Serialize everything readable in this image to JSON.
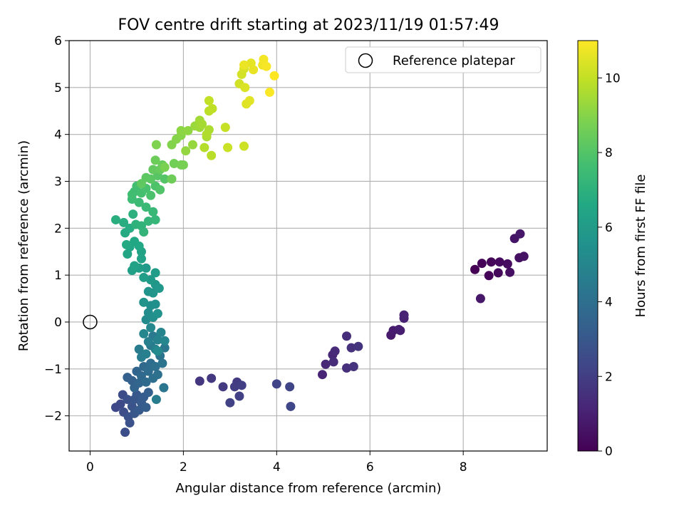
{
  "chart_data": {
    "type": "scatter",
    "title": "FOV centre drift starting at 2023/11/19 01:57:49",
    "xlabel": "Angular distance from reference (arcmin)",
    "ylabel": "Rotation from reference (arcmin)",
    "xlim": [
      -0.45,
      9.8
    ],
    "ylim": [
      -2.75,
      6.0
    ],
    "x_ticks": [
      0,
      2,
      4,
      6,
      8
    ],
    "y_ticks": [
      -2,
      -1,
      0,
      1,
      2,
      3,
      4,
      5,
      6
    ],
    "grid": true,
    "legend": {
      "position": "top-right",
      "entries": [
        "Reference platepar"
      ]
    },
    "colorbar": {
      "label": "Hours from first FF file",
      "range": [
        0,
        11
      ],
      "ticks": [
        0,
        2,
        4,
        6,
        8,
        10
      ],
      "colormap": "viridis"
    },
    "reference_point": {
      "x": 0,
      "y": 0
    },
    "series": [
      {
        "points": [
          [
            8.25,
            1.12
          ],
          [
            8.4,
            1.25
          ],
          [
            8.55,
            0.99
          ],
          [
            8.6,
            1.28
          ],
          [
            8.75,
            1.05
          ],
          [
            8.78,
            1.28
          ],
          [
            8.95,
            1.24
          ],
          [
            9.0,
            1.06
          ],
          [
            9.2,
            1.37
          ],
          [
            9.3,
            1.4
          ],
          [
            9.1,
            1.78
          ],
          [
            9.22,
            1.88
          ],
          [
            8.37,
            0.5
          ],
          [
            6.45,
            -0.28
          ],
          [
            6.5,
            -0.18
          ],
          [
            6.65,
            -0.18
          ],
          [
            6.62,
            -0.16
          ],
          [
            6.73,
            0.08
          ],
          [
            6.73,
            0.15
          ],
          [
            4.98,
            -1.12
          ],
          [
            5.05,
            -0.9
          ],
          [
            5.2,
            -0.7
          ],
          [
            5.25,
            -0.62
          ],
          [
            5.22,
            -0.85
          ],
          [
            5.5,
            -0.3
          ],
          [
            5.5,
            -0.98
          ],
          [
            5.6,
            -0.55
          ],
          [
            5.65,
            -0.95
          ],
          [
            5.75,
            -0.52
          ],
          [
            2.35,
            -1.26
          ],
          [
            2.6,
            -1.2
          ],
          [
            2.85,
            -1.38
          ],
          [
            3.15,
            -1.28
          ],
          [
            3.1,
            -1.38
          ],
          [
            3.25,
            -1.35
          ],
          [
            3.2,
            -1.58
          ],
          [
            3.0,
            -1.72
          ],
          [
            4.0,
            -1.32
          ],
          [
            4.28,
            -1.38
          ],
          [
            4.3,
            -1.8
          ],
          [
            0.55,
            -1.82
          ],
          [
            0.65,
            -1.75
          ],
          [
            0.7,
            -1.55
          ],
          [
            0.72,
            -1.92
          ],
          [
            0.75,
            -2.35
          ],
          [
            0.8,
            -1.65
          ],
          [
            0.82,
            -2.02
          ],
          [
            0.85,
            -2.15
          ],
          [
            0.9,
            -1.8
          ],
          [
            0.95,
            -1.65
          ],
          [
            0.95,
            -1.95
          ],
          [
            1.0,
            -1.55
          ],
          [
            1.05,
            -1.88
          ],
          [
            1.1,
            -1.72
          ],
          [
            1.15,
            -1.6
          ],
          [
            1.2,
            -1.82
          ],
          [
            1.25,
            -1.5
          ],
          [
            0.8,
            -1.18
          ],
          [
            0.9,
            -1.25
          ],
          [
            0.95,
            -1.4
          ],
          [
            1.0,
            -1.05
          ],
          [
            1.05,
            -1.3
          ],
          [
            1.1,
            -1.15
          ],
          [
            1.15,
            -0.95
          ],
          [
            1.2,
            -1.28
          ],
          [
            1.25,
            -1.05
          ],
          [
            1.3,
            -0.88
          ],
          [
            1.35,
            -1.2
          ],
          [
            1.4,
            -0.95
          ],
          [
            1.45,
            -1.12
          ],
          [
            1.5,
            -0.72
          ],
          [
            1.55,
            -0.88
          ],
          [
            1.58,
            -1.4
          ],
          [
            1.6,
            -0.55
          ],
          [
            1.3,
            -0.5
          ],
          [
            1.35,
            -0.3
          ],
          [
            1.42,
            -1.65
          ],
          [
            1.05,
            -0.58
          ],
          [
            1.1,
            -0.75
          ],
          [
            1.2,
            -0.68
          ],
          [
            1.25,
            -0.42
          ],
          [
            1.4,
            -0.58
          ],
          [
            1.45,
            -0.38
          ],
          [
            1.52,
            -0.22
          ],
          [
            1.6,
            -0.4
          ],
          [
            1.15,
            -0.25
          ],
          [
            1.3,
            -0.12
          ],
          [
            1.45,
            -0.62
          ],
          [
            1.2,
            0.05
          ],
          [
            1.25,
            0.2
          ],
          [
            1.3,
            0.35
          ],
          [
            1.35,
            0.1
          ],
          [
            1.4,
            0.38
          ],
          [
            1.45,
            0.18
          ],
          [
            1.15,
            0.42
          ],
          [
            1.25,
            0.65
          ],
          [
            1.35,
            0.62
          ],
          [
            1.4,
            0.8
          ],
          [
            1.48,
            0.72
          ],
          [
            1.3,
            0.9
          ],
          [
            1.2,
            1.15
          ],
          [
            1.4,
            1.05
          ],
          [
            1.15,
            0.95
          ],
          [
            1.05,
            1.15
          ],
          [
            0.9,
            1.1
          ],
          [
            0.95,
            1.2
          ],
          [
            1.1,
            1.35
          ],
          [
            1.1,
            1.5
          ],
          [
            0.8,
            1.45
          ],
          [
            0.85,
            1.6
          ],
          [
            0.95,
            1.72
          ],
          [
            1.05,
            1.62
          ],
          [
            0.78,
            1.65
          ],
          [
            0.75,
            1.9
          ],
          [
            0.85,
            2.0
          ],
          [
            0.72,
            2.12
          ],
          [
            0.55,
            2.18
          ],
          [
            0.92,
            2.3
          ],
          [
            0.98,
            2.08
          ],
          [
            1.1,
            2.05
          ],
          [
            1.15,
            1.92
          ],
          [
            1.25,
            2.15
          ],
          [
            1.4,
            2.18
          ],
          [
            1.35,
            2.35
          ],
          [
            1.2,
            2.45
          ],
          [
            1.05,
            2.55
          ],
          [
            0.9,
            2.62
          ],
          [
            0.95,
            2.78
          ],
          [
            0.9,
            2.72
          ],
          [
            1.0,
            2.9
          ],
          [
            1.1,
            2.75
          ],
          [
            1.2,
            2.85
          ],
          [
            1.3,
            2.7
          ],
          [
            1.4,
            2.9
          ],
          [
            1.5,
            2.82
          ],
          [
            1.6,
            3.05
          ],
          [
            1.45,
            3.12
          ],
          [
            1.3,
            3.05
          ],
          [
            1.2,
            3.08
          ],
          [
            1.1,
            2.95
          ],
          [
            1.35,
            3.25
          ],
          [
            1.5,
            3.25
          ],
          [
            1.55,
            3.35
          ],
          [
            1.4,
            3.45
          ],
          [
            1.75,
            3.05
          ],
          [
            1.8,
            3.38
          ],
          [
            1.95,
            3.35
          ],
          [
            2.0,
            3.35
          ],
          [
            1.6,
            3.3
          ],
          [
            1.42,
            3.78
          ],
          [
            1.75,
            3.78
          ],
          [
            1.85,
            3.9
          ],
          [
            1.95,
            3.98
          ],
          [
            1.95,
            4.08
          ],
          [
            2.1,
            4.08
          ],
          [
            2.05,
            3.65
          ],
          [
            2.2,
            3.78
          ],
          [
            2.25,
            4.18
          ],
          [
            2.35,
            4.15
          ],
          [
            2.35,
            4.3
          ],
          [
            2.4,
            4.22
          ],
          [
            2.5,
            3.95
          ],
          [
            2.55,
            4.1
          ],
          [
            2.5,
            4.0
          ],
          [
            2.45,
            3.72
          ],
          [
            2.6,
            3.55
          ],
          [
            2.55,
            4.5
          ],
          [
            2.62,
            4.55
          ],
          [
            2.55,
            4.72
          ],
          [
            2.9,
            4.15
          ],
          [
            2.95,
            3.72
          ],
          [
            3.3,
            3.75
          ],
          [
            3.2,
            5.08
          ],
          [
            3.25,
            5.28
          ],
          [
            3.3,
            5.4
          ],
          [
            3.32,
            5.0
          ],
          [
            3.35,
            4.65
          ],
          [
            3.42,
            4.72
          ],
          [
            3.45,
            5.52
          ],
          [
            3.5,
            5.38
          ],
          [
            3.3,
            5.48
          ],
          [
            3.7,
            5.48
          ],
          [
            3.72,
            5.6
          ],
          [
            3.78,
            5.45
          ],
          [
            3.85,
            4.9
          ],
          [
            3.95,
            5.25
          ]
        ]
      }
    ]
  }
}
